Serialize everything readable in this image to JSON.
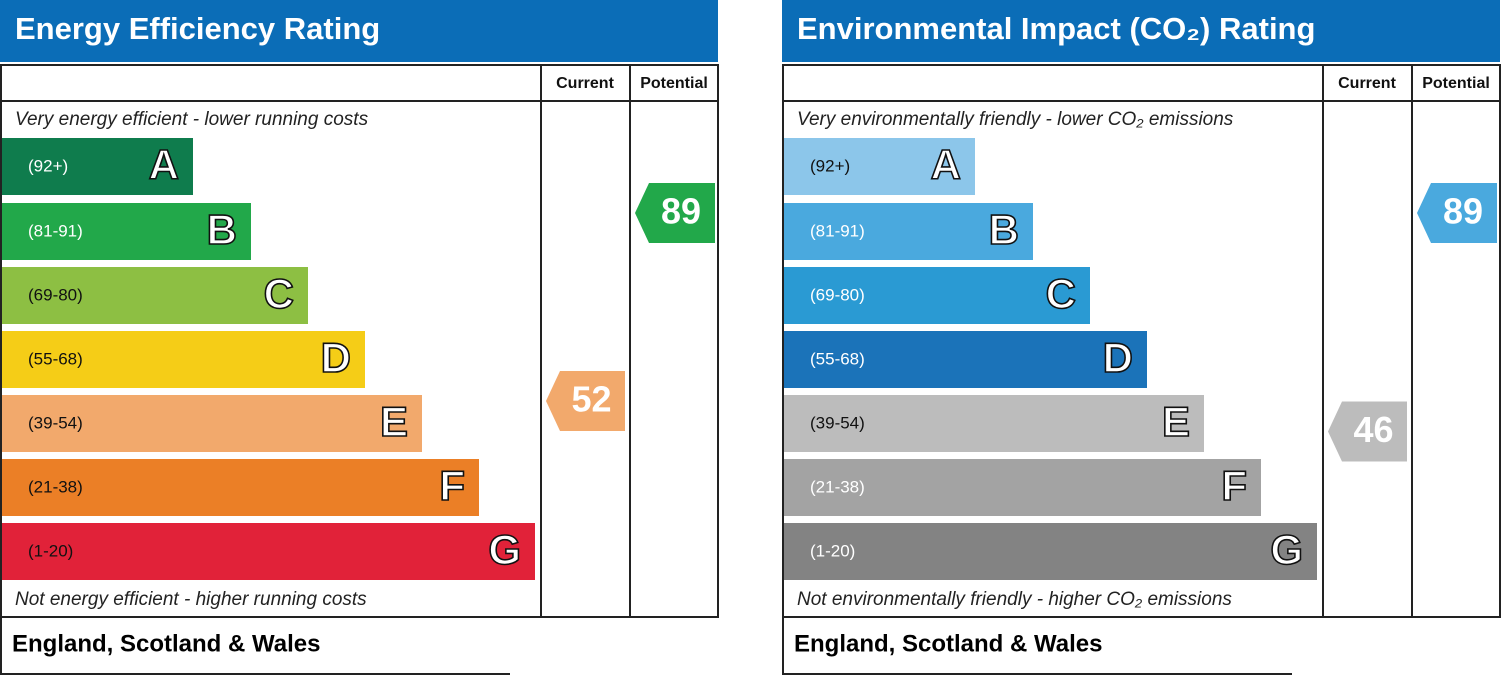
{
  "panels": [
    {
      "title": "Energy Efficiency Rating",
      "current_label": "Current",
      "potential_label": "Potential",
      "top_note": "Very energy efficient - lower running costs",
      "bottom_note": "Not energy efficient - higher running costs",
      "footer": "England, Scotland & Wales",
      "bands": [
        {
          "range": "(92+)",
          "letter": "A",
          "color": "#0f7c4d"
        },
        {
          "range": "(81-91)",
          "letter": "B",
          "color": "#22a84a"
        },
        {
          "range": "(69-80)",
          "letter": "C",
          "color": "#8dbf43"
        },
        {
          "range": "(55-68)",
          "letter": "D",
          "color": "#f5cd17"
        },
        {
          "range": "(39-54)",
          "letter": "E",
          "color": "#f2a96c"
        },
        {
          "range": "(21-38)",
          "letter": "F",
          "color": "#eb7f26"
        },
        {
          "range": "(1-20)",
          "letter": "G",
          "color": "#e12239"
        }
      ],
      "current": {
        "value": 52,
        "color": "#f2a96c"
      },
      "potential": {
        "value": 89,
        "color": "#22a84a"
      }
    },
    {
      "title": "Environmental Impact (CO₂) Rating",
      "current_label": "Current",
      "potential_label": "Potential",
      "top_note": "Very environmentally friendly - lower CO₂ emissions",
      "bottom_note": "Not environmentally friendly - higher CO₂ emissions",
      "footer": "England, Scotland & Wales",
      "bands": [
        {
          "range": "(92+)",
          "letter": "A",
          "color": "#8cc6ea"
        },
        {
          "range": "(81-91)",
          "letter": "B",
          "color": "#4aa9de"
        },
        {
          "range": "(69-80)",
          "letter": "C",
          "color": "#2a9ad3"
        },
        {
          "range": "(55-68)",
          "letter": "D",
          "color": "#1b73b9"
        },
        {
          "range": "(39-54)",
          "letter": "E",
          "color": "#bcbcbc"
        },
        {
          "range": "(21-38)",
          "letter": "F",
          "color": "#a3a3a3"
        },
        {
          "range": "(1-20)",
          "letter": "G",
          "color": "#838383"
        }
      ],
      "current": {
        "value": 46,
        "color": "#bcbcbc"
      },
      "potential": {
        "value": 89,
        "color": "#4aa9de"
      }
    }
  ]
}
